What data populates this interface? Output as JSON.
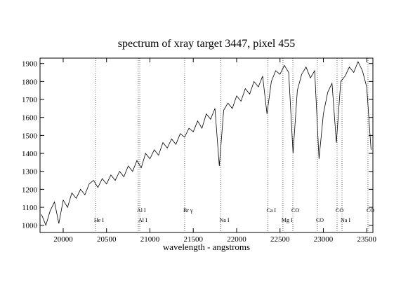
{
  "chart_data": {
    "type": "line",
    "title": "spectrum of xray target 3447, pixel 455",
    "x_label": "wavelength - angstroms",
    "x": [
      19750,
      19800,
      19850,
      19900,
      19950,
      20000,
      20050,
      20100,
      20150,
      20200,
      20250,
      20300,
      20350,
      20400,
      20450,
      20500,
      20550,
      20600,
      20650,
      20700,
      20750,
      20800,
      20850,
      20900,
      20950,
      21000,
      21050,
      21100,
      21150,
      21200,
      21250,
      21300,
      21350,
      21400,
      21450,
      21500,
      21550,
      21600,
      21650,
      21700,
      21750,
      21800,
      21850,
      21900,
      21950,
      22000,
      22050,
      22100,
      22150,
      22200,
      22250,
      22300,
      22350,
      22400,
      22450,
      22500,
      22550,
      22600,
      22650,
      22700,
      22750,
      22800,
      22850,
      22900,
      22950,
      23000,
      23050,
      23100,
      23150,
      23200,
      23250,
      23300,
      23350,
      23400,
      23450,
      23500,
      23550
    ],
    "values": [
      1060,
      1000,
      1080,
      1130,
      1010,
      1140,
      1100,
      1180,
      1150,
      1200,
      1170,
      1230,
      1250,
      1210,
      1260,
      1230,
      1280,
      1250,
      1300,
      1270,
      1330,
      1300,
      1360,
      1320,
      1400,
      1370,
      1420,
      1390,
      1460,
      1430,
      1480,
      1450,
      1510,
      1490,
      1540,
      1520,
      1580,
      1540,
      1620,
      1590,
      1650,
      1330,
      1640,
      1680,
      1650,
      1720,
      1690,
      1760,
      1730,
      1800,
      1770,
      1830,
      1620,
      1800,
      1860,
      1840,
      1890,
      1850,
      1400,
      1750,
      1840,
      1880,
      1820,
      1860,
      1370,
      1620,
      1740,
      1790,
      1460,
      1800,
      1830,
      1880,
      1850,
      1910,
      1860,
      1770,
      1420
    ],
    "color": "#000000",
    "xlim": [
      19733,
      23571
    ],
    "xticks": [
      20000,
      20500,
      21000,
      21500,
      22000,
      22500,
      23000,
      23500
    ],
    "ylim": [
      960,
      1930
    ],
    "yticks": [
      1000,
      1100,
      1200,
      1300,
      1400,
      1500,
      1600,
      1700,
      1800,
      1900
    ],
    "annotations": [
      {
        "x": 20372,
        "label": "He I"
      },
      {
        "x": 20866,
        "label": "Al I"
      },
      {
        "x": 20883,
        "label": "Al I"
      },
      {
        "x": 21401,
        "label": "Br γ"
      },
      {
        "x": 21818,
        "label": "Na I"
      },
      {
        "x": 22360,
        "label": "Ca I"
      },
      {
        "x": 22534,
        "label": "Mg I"
      },
      {
        "x": 22648,
        "label": "CO"
      },
      {
        "x": 22931,
        "label": "CO"
      },
      {
        "x": 23158,
        "label": "CO"
      },
      {
        "x": 23215,
        "label": "Na I"
      },
      {
        "x": 23514,
        "label": "CO"
      }
    ]
  }
}
